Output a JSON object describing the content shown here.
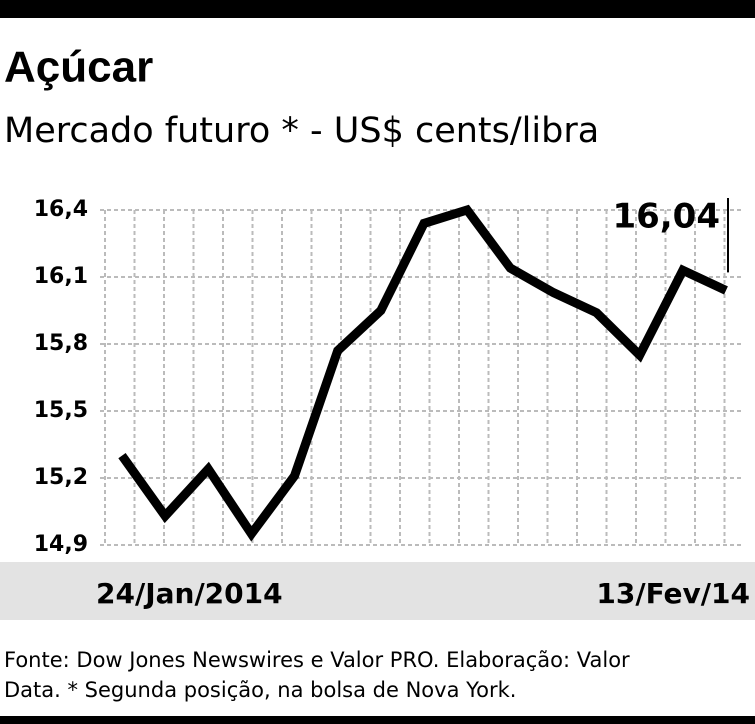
{
  "chart_data": {
    "type": "line",
    "title": "Açúcar",
    "subtitle": "Mercado futuro * -  US$ cents/libra",
    "categories": [
      "24/Jan/2014",
      null,
      null,
      null,
      null,
      null,
      null,
      null,
      null,
      null,
      null,
      null,
      null,
      null,
      "13/Fev/14"
    ],
    "series": [
      {
        "color": "#000000",
        "values": [
          15.3,
          15.03,
          15.24,
          14.95,
          15.21,
          15.77,
          15.95,
          16.34,
          16.4,
          16.14,
          16.03,
          15.94,
          15.75,
          16.13,
          16.04
        ],
        "value_labels": [
          null,
          null,
          null,
          null,
          null,
          null,
          null,
          null,
          null,
          null,
          null,
          null,
          null,
          null,
          "16,04"
        ]
      }
    ],
    "ylim": [
      14.9,
      16.4
    ],
    "yticks": [
      {
        "value": 14.9,
        "label": "14,9"
      },
      {
        "value": 15.2,
        "label": "15,2"
      },
      {
        "value": 15.5,
        "label": "15,5"
      },
      {
        "value": 15.8,
        "label": "15,8"
      },
      {
        "value": 16.1,
        "label": "16,1"
      },
      {
        "value": 16.4,
        "label": "16,4"
      }
    ],
    "grid": true,
    "source": [
      "Fonte: Dow Jones Newswires e Valor PRO. Elaboração: Valor",
      "Data. * Segunda posição, na bolsa de Nova York."
    ]
  }
}
